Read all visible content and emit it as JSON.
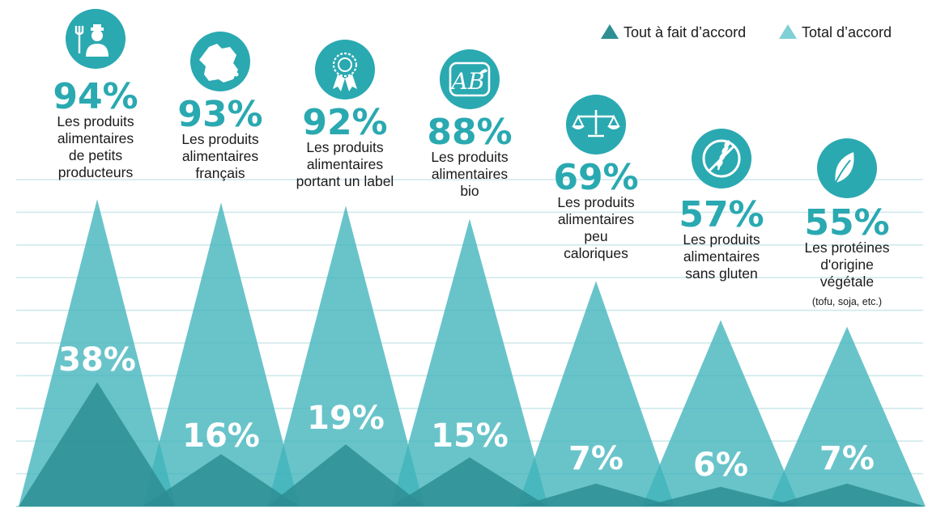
{
  "chart_data": {
    "type": "area",
    "categories": [
      "Les produits alimentaires de petits producteurs",
      "Les produits alimentaires français",
      "Les produits alimentaires portant un label",
      "Les produits alimentaires bio",
      "Les produits alimentaires peu caloriques",
      "Les produits alimentaires sans gluten",
      "Les protéines d'origine végétale"
    ],
    "series": [
      {
        "name": "Tout à fait d’accord",
        "values": [
          38,
          16,
          19,
          15,
          7,
          6,
          7
        ],
        "color": "#2d8e94"
      },
      {
        "name": "Total d’accord",
        "values": [
          94,
          93,
          92,
          88,
          69,
          57,
          55
        ],
        "color": "#3fb4bb"
      }
    ],
    "legend": "top-right",
    "grid": true
  },
  "legend": [
    {
      "label": "Tout à fait d’accord",
      "color": "#2d8e94"
    },
    {
      "label": "Total d’accord",
      "color": "#7fd0d5"
    }
  ],
  "items": [
    {
      "icon": "farmer-icon",
      "total": "94%",
      "strong": "38%",
      "lines": [
        [
          [
            "Les produits",
            false
          ]
        ],
        [
          [
            "alimentaires",
            false
          ]
        ],
        [
          [
            "de ",
            false
          ],
          [
            "petits",
            true
          ]
        ],
        [
          [
            "producteurs",
            true
          ]
        ]
      ]
    },
    {
      "icon": "france-map-icon",
      "total": "93%",
      "strong": "16%",
      "lines": [
        [
          [
            "Les produits",
            false
          ]
        ],
        [
          [
            "alimentaires",
            false
          ]
        ],
        [
          [
            "français",
            true
          ]
        ]
      ]
    },
    {
      "icon": "award-ribbon-icon",
      "total": "92%",
      "strong": "19%",
      "lines": [
        [
          [
            "Les produits",
            false
          ]
        ],
        [
          [
            "alimentaires",
            false
          ]
        ],
        [
          [
            "portant un ",
            false
          ],
          [
            "label",
            true
          ]
        ]
      ]
    },
    {
      "icon": "organic-label-icon",
      "icon_text": "AB",
      "total": "88%",
      "strong": "15%",
      "lines": [
        [
          [
            "Les produits",
            false
          ]
        ],
        [
          [
            "alimentaires",
            false
          ]
        ],
        [
          [
            "bio",
            true
          ]
        ]
      ]
    },
    {
      "icon": "scale-icon",
      "total": "69%",
      "strong": "7%",
      "lines": [
        [
          [
            "Les produits",
            false
          ]
        ],
        [
          [
            "alimentaires",
            false
          ]
        ],
        [
          [
            "peu",
            true
          ]
        ],
        [
          [
            "caloriques",
            true
          ]
        ]
      ]
    },
    {
      "icon": "gluten-free-icon",
      "total": "57%",
      "strong": "6%",
      "lines": [
        [
          [
            "Les produits",
            false
          ]
        ],
        [
          [
            "alimentaires",
            false
          ]
        ],
        [
          [
            "sans gluten",
            true
          ]
        ]
      ]
    },
    {
      "icon": "leaf-icon",
      "total": "55%",
      "strong": "7%",
      "lines": [
        [
          [
            "Les protéines",
            false
          ]
        ],
        [
          [
            "d'",
            false
          ],
          [
            "origine",
            true
          ]
        ],
        [
          [
            "végétale",
            true
          ]
        ]
      ],
      "note": "(tofu, soja, etc.)"
    }
  ]
}
